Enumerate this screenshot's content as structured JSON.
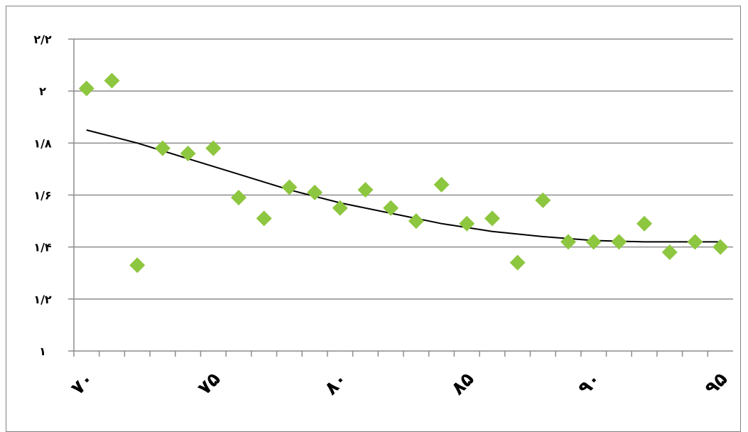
{
  "chart_data": {
    "type": "scatter",
    "title": "",
    "xlabel": "",
    "ylabel": "",
    "xlim": [
      69.5,
      95.5
    ],
    "ylim": [
      1,
      2.2
    ],
    "x_ticks": [
      70,
      75,
      80,
      85,
      90,
      95
    ],
    "x_tick_labels": [
      "۷۰",
      "۷۵",
      "۸۰",
      "۸۵",
      "۹۰",
      "۹۵"
    ],
    "y_ticks": [
      1,
      1.2,
      1.4,
      1.6,
      1.8,
      2,
      2.2
    ],
    "y_tick_labels": [
      "۱",
      "۱/۲",
      "۱/۴",
      "۱/۶",
      "۱/۸",
      "۲",
      "۲/۲"
    ],
    "grid": "horizontal",
    "legend": "none",
    "marker_color": "#8dc63f",
    "trendline_color": "#000000",
    "series": [
      {
        "x": [
          70,
          71,
          72,
          73,
          74,
          75,
          76,
          77,
          78,
          79,
          80,
          81,
          82,
          83,
          84,
          85,
          86,
          87,
          88,
          89,
          90,
          91,
          92,
          93,
          94,
          95
        ],
        "values": [
          2.01,
          2.04,
          1.33,
          1.78,
          1.76,
          1.78,
          1.59,
          1.51,
          1.63,
          1.61,
          1.55,
          1.62,
          1.55,
          1.5,
          1.64,
          1.49,
          1.51,
          1.34,
          1.58,
          1.42,
          1.42,
          1.42,
          1.49,
          1.38,
          1.42,
          1.4
        ]
      }
    ],
    "trendline": {
      "type": "polynomial",
      "x": [
        70,
        72,
        74,
        76,
        78,
        80,
        82,
        84,
        86,
        88,
        90,
        92,
        94,
        95
      ],
      "values": [
        1.85,
        1.8,
        1.74,
        1.68,
        1.62,
        1.57,
        1.53,
        1.49,
        1.46,
        1.44,
        1.425,
        1.42,
        1.42,
        1.42
      ]
    }
  }
}
